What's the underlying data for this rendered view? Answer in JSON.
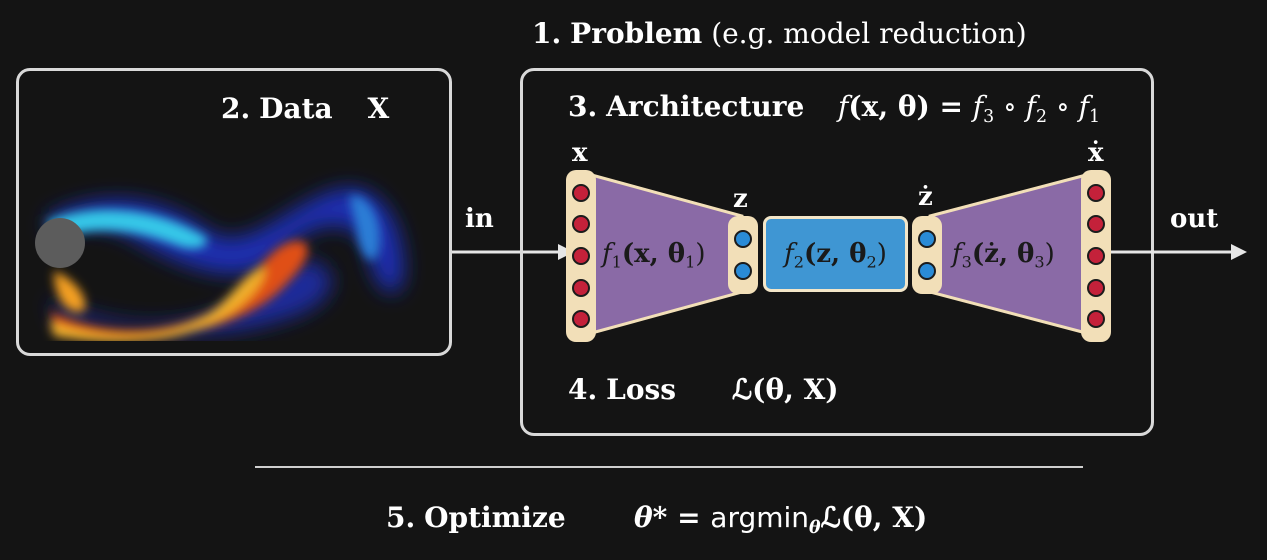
{
  "problem": {
    "num": "1.",
    "title": "Problem",
    "note": "(e.g. model reduction)"
  },
  "data": {
    "num": "2.",
    "title": "Data",
    "symbol": "X"
  },
  "architecture": {
    "num": "3.",
    "title": "Architecture",
    "formula_f": "f",
    "formula_args": "(x, θ) = ",
    "composition": [
      "f",
      "3",
      " ∘ ",
      "f",
      "2",
      " ∘ ",
      "f",
      "1"
    ]
  },
  "loss": {
    "num": "4.",
    "title": "Loss",
    "formula": "ℒ(θ, X)"
  },
  "optimize": {
    "num": "5.",
    "title": "Optimize",
    "lhs": "θ* = ",
    "fn": "argmin",
    "sub": "θ",
    "rhs": "ℒ(θ, X)"
  },
  "network": {
    "input_label": "x",
    "latent_label": "z",
    "latent_dot_label": "ż",
    "output_label": "ẋ",
    "f1": {
      "f": "f",
      "sub": "1",
      "args": "(x, θ",
      "argsub": "1",
      "close": ")"
    },
    "f2": {
      "f": "f",
      "sub": "2",
      "args": "(z, θ",
      "argsub": "2",
      "close": ")"
    },
    "f3": {
      "f": "f",
      "sub": "3",
      "args": "(ż, θ",
      "argsub": "3",
      "close": ")"
    }
  },
  "arrows": {
    "in": "in",
    "out": "out"
  },
  "colors": {
    "background": "#141414",
    "border": "#d9d9d9",
    "trapezoid": "#8a6aa6",
    "f2": "#3f96d3",
    "node_red": "#c4213a",
    "node_blue": "#2a8bd6",
    "node_bar": "#f2dfb8"
  }
}
